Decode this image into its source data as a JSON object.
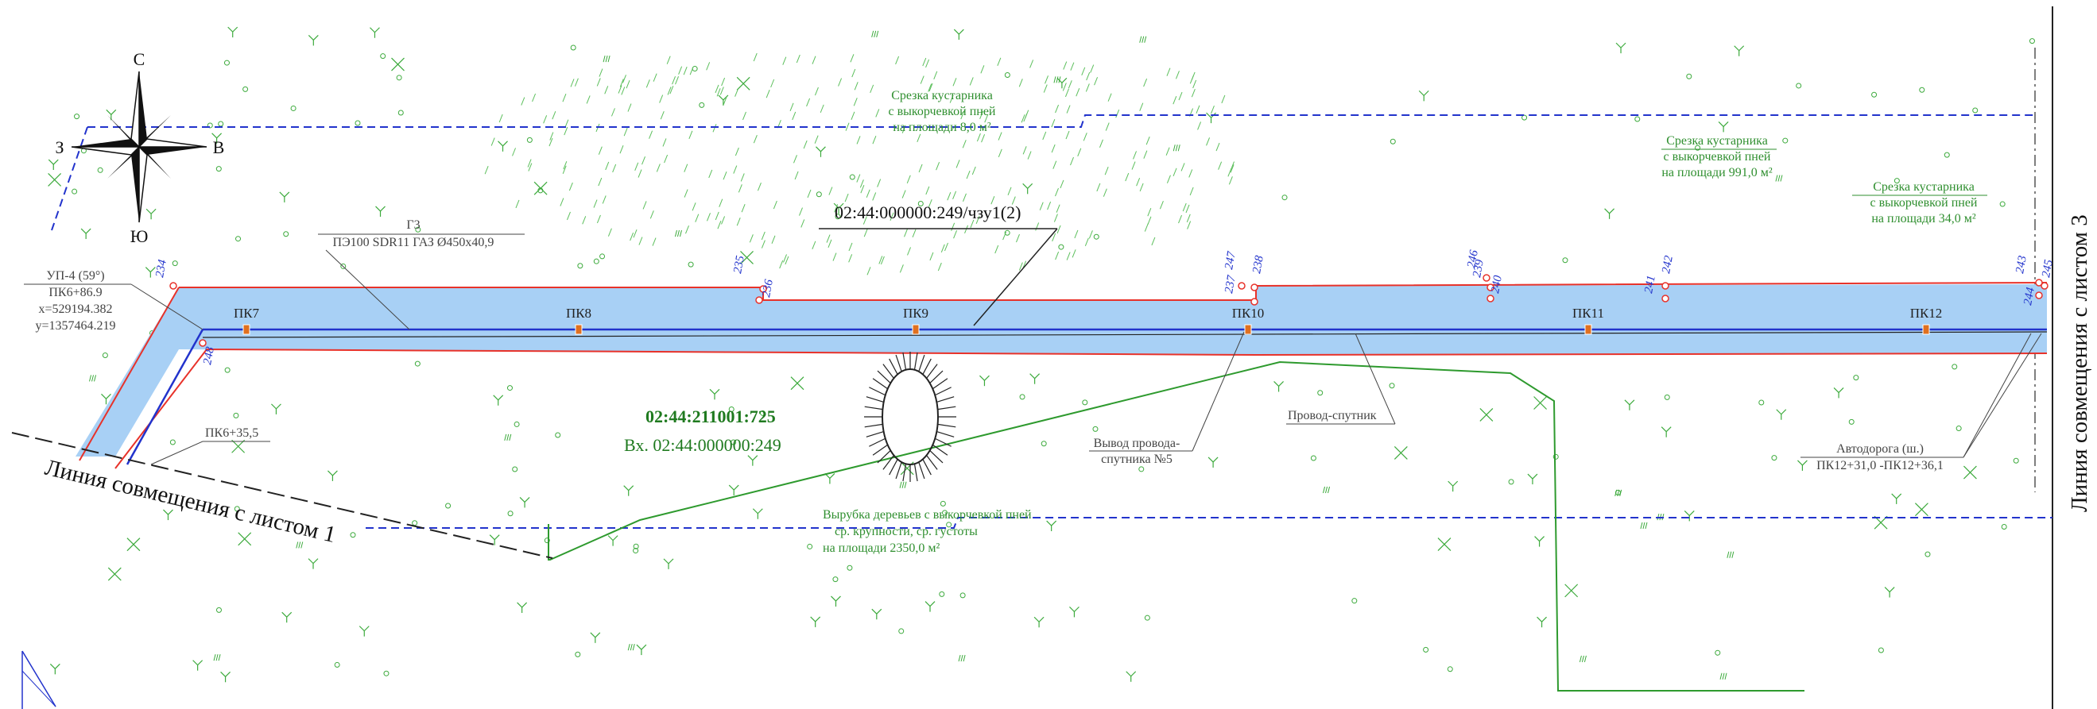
{
  "compass": {
    "north": "С",
    "south": "Ю",
    "west": "З",
    "east": "В"
  },
  "parcel_label": "02:44:000000:249/чзу1(2)",
  "pipe_label": {
    "line1": "Г3",
    "line2": "ПЭ100 SDR11 ГАЗ Ø450х40,9"
  },
  "turn_point": {
    "line1": "УП-4 (59°)",
    "line2": "ПК6+86.9",
    "line3": "х=529194.382",
    "line4": "у=1357464.219"
  },
  "pk_start": "ПК6+35,5",
  "pickets": [
    "ПК7",
    "ПК8",
    "ПК9",
    "ПК10",
    "ПК11",
    "ПК12"
  ],
  "vertex_numbers": {
    "v234": "234",
    "v235": "235",
    "v236": "236",
    "v237": "237",
    "v238": "238",
    "v239": "239",
    "v240": "240",
    "v241": "241",
    "v242": "242",
    "v243": "243",
    "v244": "244",
    "v245": "245",
    "v246": "246",
    "v247": "247",
    "v248": "248"
  },
  "clearing_shrub_top": {
    "line1": "Срезка кустарника",
    "line2": "с выкорчевкой пней",
    "line3": "на площади 8,0 м²"
  },
  "clearing_shrub_right": {
    "line1": "Срезка кустарника",
    "line2": "с выкорчевкой пней",
    "line3": "на площади 991,0 м²"
  },
  "clearing_shrub_far": {
    "line1": "Срезка кустарника",
    "line2": "с выкорчевкой пней",
    "line3": "на площади 34,0 м²"
  },
  "tree_cutting": {
    "line1": "Вырубка деревьев с выкорчевкой пней",
    "line2": "ср. крупности, ср. густоты",
    "line3": "на площади 2350,0 м²"
  },
  "cadastral": {
    "main": "02:44:211001:725",
    "sub": "Вх. 02:44:000000:249"
  },
  "wire_output": {
    "line1": "Вывод провода-",
    "line2": "спутника №5"
  },
  "wire_companion": "Провод-спутник",
  "road": {
    "line1": "Автодорога (ш.)",
    "line2": "ПК12+31,0 -ПК12+36,1"
  },
  "match_line_1": "Линия совмещения с листом 1",
  "match_line_3": "Линия совмещения с листом 3",
  "colors": {
    "corridor_fill": "#a8d0f5",
    "boundary_red": "#e8322a",
    "pipe_blue": "#2233cc",
    "vegetation_green": "#3caa3c",
    "text_green": "#2f8f2f"
  }
}
